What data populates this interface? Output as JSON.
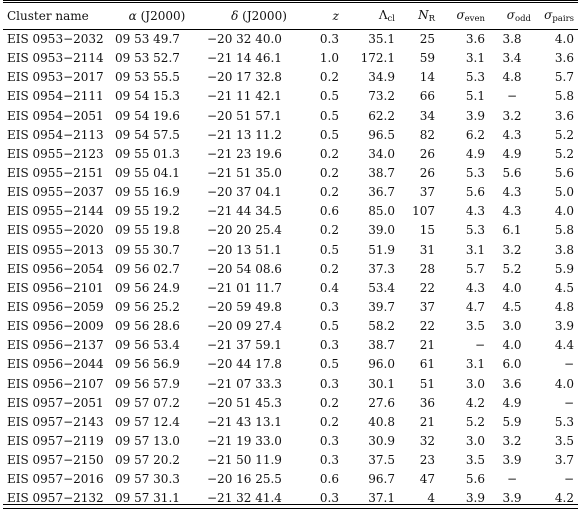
{
  "table": {
    "headers": {
      "name": "Cluster name",
      "ra_sym": "α",
      "ra_epoch": "(J2000)",
      "dec_sym": "δ",
      "dec_epoch": "(J2000)",
      "z": "z",
      "lambda_sym": "Λ",
      "lambda_sub": "cl",
      "nr_sym": "N",
      "nr_sub": "R",
      "sig_even_sym": "σ",
      "sig_even_sub": "even",
      "sig_odd_sym": "σ",
      "sig_odd_sub": "odd",
      "sig_pairs_sym": "σ",
      "sig_pairs_sub": "pairs"
    },
    "rows": [
      [
        "EIS 0953−2032",
        "09 53 49.7",
        "−20 32 40.0",
        "0.3",
        "35.1",
        "25",
        "3.6",
        "3.8",
        "4.0"
      ],
      [
        "EIS 0953−2114",
        "09 53 52.7",
        "−21 14 46.1",
        "1.0",
        "172.1",
        "59",
        "3.1",
        "3.4",
        "3.6"
      ],
      [
        "EIS 0953−2017",
        "09 53 55.5",
        "−20 17 32.8",
        "0.2",
        "34.9",
        "14",
        "5.3",
        "4.8",
        "5.7"
      ],
      [
        "EIS 0954−2111",
        "09 54 15.3",
        "−21 11 42.1",
        "0.5",
        "73.2",
        "66",
        "5.1",
        "−",
        "5.8"
      ],
      [
        "EIS 0954−2051",
        "09 54 19.6",
        "−20 51 57.1",
        "0.5",
        "62.2",
        "34",
        "3.9",
        "3.2",
        "3.6"
      ],
      [
        "EIS 0954−2113",
        "09 54 57.5",
        "−21 13 11.2",
        "0.5",
        "96.5",
        "82",
        "6.2",
        "4.3",
        "5.2"
      ],
      [
        "EIS 0955−2123",
        "09 55 01.3",
        "−21 23 19.6",
        "0.2",
        "34.0",
        "26",
        "4.9",
        "4.9",
        "5.2"
      ],
      [
        "EIS 0955−2151",
        "09 55 04.1",
        "−21 51 35.0",
        "0.2",
        "38.7",
        "26",
        "5.3",
        "5.6",
        "5.6"
      ],
      [
        "EIS 0955−2037",
        "09 55 16.9",
        "−20 37 04.1",
        "0.2",
        "36.7",
        "37",
        "5.6",
        "4.3",
        "5.0"
      ],
      [
        "EIS 0955−2144",
        "09 55 19.2",
        "−21 44 34.5",
        "0.6",
        "85.0",
        "107",
        "4.3",
        "4.3",
        "4.0"
      ],
      [
        "EIS 0955−2020",
        "09 55 19.8",
        "−20 20 25.4",
        "0.2",
        "39.0",
        "15",
        "5.3",
        "6.1",
        "5.8"
      ],
      [
        "EIS 0955−2013",
        "09 55 30.7",
        "−20 13 51.1",
        "0.5",
        "51.9",
        "31",
        "3.1",
        "3.2",
        "3.8"
      ],
      [
        "EIS 0956−2054",
        "09 56 02.7",
        "−20 54 08.6",
        "0.2",
        "37.3",
        "28",
        "5.7",
        "5.2",
        "5.9"
      ],
      [
        "EIS 0956−2101",
        "09 56 24.9",
        "−21 01 11.7",
        "0.4",
        "53.4",
        "22",
        "4.3",
        "4.0",
        "4.5"
      ],
      [
        "EIS 0956−2059",
        "09 56 25.2",
        "−20 59 49.8",
        "0.3",
        "39.7",
        "37",
        "4.7",
        "4.5",
        "4.8"
      ],
      [
        "EIS 0956−2009",
        "09 56 28.6",
        "−20 09 27.4",
        "0.5",
        "58.2",
        "22",
        "3.5",
        "3.0",
        "3.9"
      ],
      [
        "EIS 0956−2137",
        "09 56 53.4",
        "−21 37 59.1",
        "0.3",
        "38.7",
        "21",
        "−",
        "4.0",
        "4.4"
      ],
      [
        "EIS 0956−2044",
        "09 56 56.9",
        "−20 44 17.8",
        "0.5",
        "96.0",
        "61",
        "3.1",
        "6.0",
        "−"
      ],
      [
        "EIS 0956−2107",
        "09 56 57.9",
        "−21 07 33.3",
        "0.3",
        "30.1",
        "51",
        "3.0",
        "3.6",
        "4.0"
      ],
      [
        "EIS 0957−2051",
        "09 57 07.2",
        "−20 51 45.3",
        "0.2",
        "27.6",
        "36",
        "4.2",
        "4.9",
        "−"
      ],
      [
        "EIS 0957−2143",
        "09 57 12.4",
        "−21 43 13.1",
        "0.2",
        "40.8",
        "21",
        "5.2",
        "5.9",
        "5.3"
      ],
      [
        "EIS 0957−2119",
        "09 57 13.0",
        "−21 19 33.0",
        "0.3",
        "30.9",
        "32",
        "3.0",
        "3.2",
        "3.5"
      ],
      [
        "EIS 0957−2150",
        "09 57 20.2",
        "−21 50 11.9",
        "0.3",
        "37.5",
        "23",
        "3.5",
        "3.9",
        "3.7"
      ],
      [
        "EIS 0957−2016",
        "09 57 30.3",
        "−20 16 25.5",
        "0.6",
        "96.7",
        "47",
        "5.6",
        "−",
        "−"
      ],
      [
        "EIS 0957−2132",
        "09 57 31.1",
        "−21 32 41.4",
        "0.3",
        "37.1",
        "4",
        "3.9",
        "3.9",
        "4.2"
      ]
    ]
  }
}
